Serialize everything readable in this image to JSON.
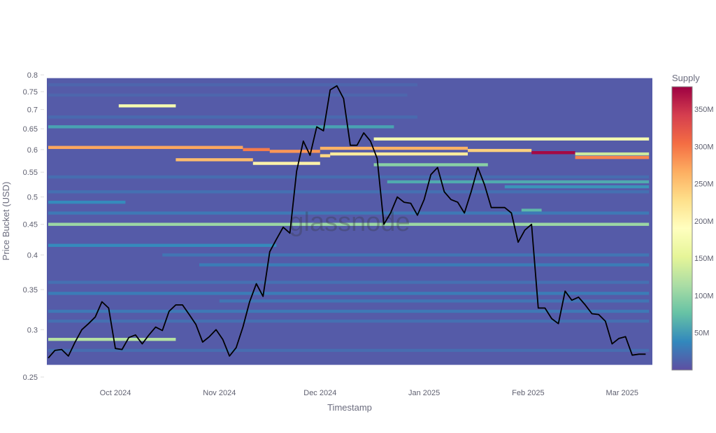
{
  "chart_data": {
    "type": "heatmap",
    "xlabel": "Timestamp",
    "ylabel": "Price Bucket (USD)",
    "yscale": "log",
    "ylim": [
      0.25,
      0.8
    ],
    "xlim": [
      "2024-09-11",
      "2025-03-09"
    ],
    "y_ticks": [
      "0.25",
      "0.3",
      "0.35",
      "0.4",
      "0.45",
      "0.5",
      "0.55",
      "0.6",
      "0.65",
      "0.7",
      "0.75",
      "0.8"
    ],
    "x_ticks": [
      {
        "date": "2024-10-01",
        "label": "Oct 2024"
      },
      {
        "date": "2024-11-01",
        "label": "Nov 2024"
      },
      {
        "date": "2024-12-01",
        "label": "Dec 2024"
      },
      {
        "date": "2025-01-01",
        "label": "Jan 2025"
      },
      {
        "date": "2025-02-01",
        "label": "Feb 2025"
      },
      {
        "date": "2025-03-01",
        "label": "Mar 2025"
      }
    ],
    "colorbar": {
      "title": "Supply",
      "range_millions": [
        0,
        380
      ],
      "ticks": [
        "50M",
        "100M",
        "150M",
        "200M",
        "250M",
        "300M",
        "350M"
      ],
      "colorscale": [
        "#5e4fa2",
        "#3288bd",
        "#66c2a5",
        "#abdda4",
        "#e6f598",
        "#ffffbf",
        "#fee08b",
        "#fdae61",
        "#f46d43",
        "#d53e4f",
        "#9e0142"
      ]
    },
    "heatmap_background_supply_millions": 8,
    "heatmap_price_range": [
      0.262,
      0.79
    ],
    "bands": [
      {
        "price": 0.71,
        "start": "2024-10-02",
        "end": "2024-10-19",
        "supply": 175
      },
      {
        "price": 0.605,
        "start": "2024-09-11",
        "end": "2024-11-08",
        "supply": 270
      },
      {
        "price": 0.6,
        "start": "2024-11-08",
        "end": "2024-11-16",
        "supply": 295
      },
      {
        "price": 0.596,
        "start": "2024-11-16",
        "end": "2024-12-01",
        "supply": 280
      },
      {
        "price": 0.603,
        "start": "2024-12-01",
        "end": "2025-01-14",
        "supply": 262
      },
      {
        "price": 0.598,
        "start": "2025-01-14",
        "end": "2025-02-02",
        "supply": 240
      },
      {
        "price": 0.593,
        "start": "2025-02-02",
        "end": "2025-02-15",
        "supply": 375
      },
      {
        "price": 0.59,
        "start": "2025-02-15",
        "end": "2025-03-09",
        "supply": 135
      },
      {
        "price": 0.582,
        "start": "2025-02-15",
        "end": "2025-03-09",
        "supply": 290
      },
      {
        "price": 0.577,
        "start": "2024-10-19",
        "end": "2024-11-11",
        "supply": 255
      },
      {
        "price": 0.569,
        "start": "2024-11-11",
        "end": "2024-12-01",
        "supply": 205
      },
      {
        "price": 0.586,
        "start": "2024-12-01",
        "end": "2024-12-04",
        "supply": 235
      },
      {
        "price": 0.59,
        "start": "2024-12-04",
        "end": "2025-01-14",
        "supply": 215
      },
      {
        "price": 0.625,
        "start": "2024-12-17",
        "end": "2025-03-09",
        "supply": 175
      },
      {
        "price": 0.566,
        "start": "2024-12-17",
        "end": "2025-01-20",
        "supply": 95
      },
      {
        "price": 0.655,
        "start": "2024-09-11",
        "end": "2024-12-23",
        "supply": 55
      },
      {
        "price": 0.45,
        "start": "2024-09-11",
        "end": "2025-03-09",
        "supply": 105
      },
      {
        "price": 0.289,
        "start": "2024-09-11",
        "end": "2024-10-19",
        "supply": 120
      },
      {
        "price": 0.53,
        "start": "2024-12-21",
        "end": "2025-03-09",
        "supply": 60
      },
      {
        "price": 0.52,
        "start": "2025-01-25",
        "end": "2025-03-09",
        "supply": 45
      },
      {
        "price": 0.49,
        "start": "2024-09-11",
        "end": "2024-10-04",
        "supply": 40
      },
      {
        "price": 0.475,
        "start": "2025-01-30",
        "end": "2025-02-05",
        "supply": 70
      },
      {
        "price": 0.47,
        "start": "2024-09-11",
        "end": "2025-03-09",
        "supply": 28
      },
      {
        "price": 0.415,
        "start": "2024-09-11",
        "end": "2024-11-18",
        "supply": 40
      },
      {
        "price": 0.4,
        "start": "2024-10-15",
        "end": "2025-03-09",
        "supply": 25
      },
      {
        "price": 0.385,
        "start": "2024-10-26",
        "end": "2025-03-09",
        "supply": 30
      },
      {
        "price": 0.36,
        "start": "2024-09-11",
        "end": "2025-03-09",
        "supply": 22
      },
      {
        "price": 0.345,
        "start": "2024-09-11",
        "end": "2025-03-09",
        "supply": 30
      },
      {
        "price": 0.335,
        "start": "2024-11-01",
        "end": "2025-03-09",
        "supply": 25
      },
      {
        "price": 0.322,
        "start": "2024-09-11",
        "end": "2025-03-09",
        "supply": 28
      },
      {
        "price": 0.31,
        "start": "2024-09-11",
        "end": "2025-03-09",
        "supply": 22
      },
      {
        "price": 0.277,
        "start": "2024-09-11",
        "end": "2025-03-09",
        "supply": 20
      },
      {
        "price": 0.54,
        "start": "2024-09-11",
        "end": "2025-03-09",
        "supply": 20
      },
      {
        "price": 0.51,
        "start": "2024-09-11",
        "end": "2025-03-09",
        "supply": 22
      },
      {
        "price": 0.68,
        "start": "2024-09-11",
        "end": "2024-12-30",
        "supply": 18
      },
      {
        "price": 0.74,
        "start": "2024-09-11",
        "end": "2024-12-27",
        "supply": 15
      },
      {
        "price": 0.77,
        "start": "2024-09-11",
        "end": "2024-12-30",
        "supply": 15
      }
    ],
    "line": {
      "color": "#000000",
      "dates": [
        "2024-09-11",
        "2024-09-13",
        "2024-09-15",
        "2024-09-17",
        "2024-09-19",
        "2024-09-21",
        "2024-09-23",
        "2024-09-25",
        "2024-09-27",
        "2024-09-29",
        "2024-10-01",
        "2024-10-03",
        "2024-10-05",
        "2024-10-07",
        "2024-10-09",
        "2024-10-11",
        "2024-10-13",
        "2024-10-15",
        "2024-10-17",
        "2024-10-19",
        "2024-10-21",
        "2024-10-23",
        "2024-10-25",
        "2024-10-27",
        "2024-10-29",
        "2024-10-31",
        "2024-11-02",
        "2024-11-04",
        "2024-11-06",
        "2024-11-08",
        "2024-11-10",
        "2024-11-12",
        "2024-11-14",
        "2024-11-16",
        "2024-11-18",
        "2024-11-20",
        "2024-11-22",
        "2024-11-24",
        "2024-11-26",
        "2024-11-28",
        "2024-11-30",
        "2024-12-02",
        "2024-12-04",
        "2024-12-06",
        "2024-12-08",
        "2024-12-10",
        "2024-12-12",
        "2024-12-14",
        "2024-12-16",
        "2024-12-18",
        "2024-12-20",
        "2024-12-22",
        "2024-12-24",
        "2024-12-26",
        "2024-12-28",
        "2024-12-30",
        "2025-01-01",
        "2025-01-03",
        "2025-01-05",
        "2025-01-07",
        "2025-01-09",
        "2025-01-11",
        "2025-01-13",
        "2025-01-15",
        "2025-01-17",
        "2025-01-19",
        "2025-01-21",
        "2025-01-23",
        "2025-01-25",
        "2025-01-27",
        "2025-01-29",
        "2025-01-31",
        "2025-02-02",
        "2025-02-04",
        "2025-02-06",
        "2025-02-08",
        "2025-02-10",
        "2025-02-12",
        "2025-02-14",
        "2025-02-16",
        "2025-02-18",
        "2025-02-20",
        "2025-02-22",
        "2025-02-24",
        "2025-02-26",
        "2025-02-28",
        "2025-03-02",
        "2025-03-04",
        "2025-03-06",
        "2025-03-08"
      ],
      "prices": [
        0.269,
        0.277,
        0.278,
        0.271,
        0.286,
        0.3,
        0.307,
        0.315,
        0.334,
        0.326,
        0.279,
        0.278,
        0.291,
        0.294,
        0.284,
        0.294,
        0.303,
        0.299,
        0.322,
        0.33,
        0.33,
        0.318,
        0.306,
        0.286,
        0.292,
        0.3,
        0.289,
        0.271,
        0.28,
        0.303,
        0.334,
        0.358,
        0.341,
        0.405,
        0.425,
        0.445,
        0.435,
        0.552,
        0.62,
        0.587,
        0.655,
        0.645,
        0.755,
        0.767,
        0.73,
        0.61,
        0.61,
        0.64,
        0.62,
        0.58,
        0.45,
        0.47,
        0.5,
        0.49,
        0.488,
        0.466,
        0.495,
        0.545,
        0.56,
        0.51,
        0.495,
        0.49,
        0.47,
        0.51,
        0.56,
        0.524,
        0.48,
        0.48,
        0.48,
        0.47,
        0.42,
        0.44,
        0.45,
        0.326,
        0.326,
        0.313,
        0.307,
        0.348,
        0.336,
        0.34,
        0.33,
        0.319,
        0.318,
        0.31,
        0.284,
        0.29,
        0.292,
        0.272,
        0.273,
        0.273
      ]
    }
  },
  "watermark": "glassnode"
}
